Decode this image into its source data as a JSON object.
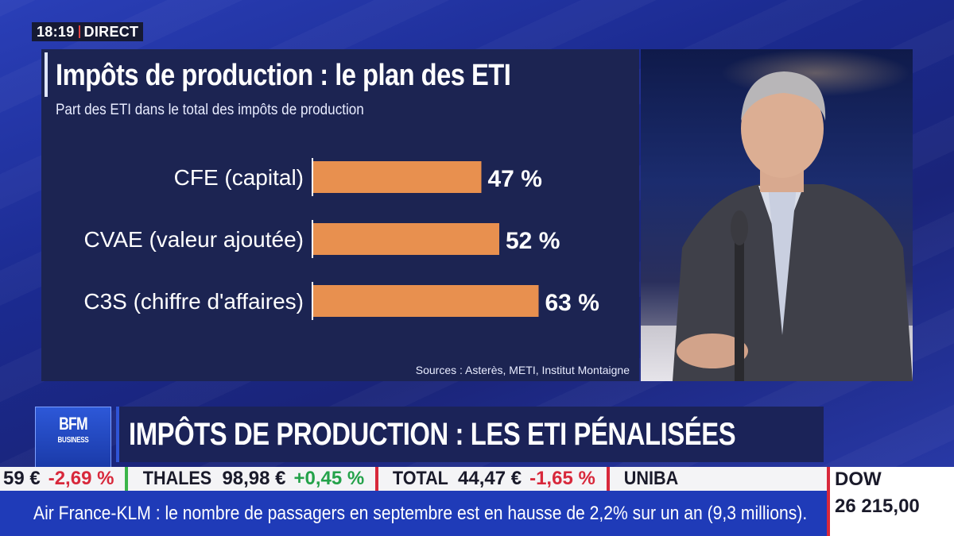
{
  "clock": {
    "time": "18:19",
    "status": "DIRECT"
  },
  "chart": {
    "title": "Impôts de production : le plan des ETI",
    "subtitle": "Part des ETI dans le total des impôts de production",
    "source": "Sources : Asterès, METI, Institut Montaigne"
  },
  "chart_data": {
    "type": "bar",
    "orientation": "horizontal",
    "title": "Impôts de production : le plan des ETI",
    "subtitle": "Part des ETI dans le total des impôts de production",
    "categories": [
      "CFE (capital)",
      "CVAE (valeur ajoutée)",
      "C3S (chiffre d'affaires)"
    ],
    "values": [
      47,
      52,
      63
    ],
    "value_labels": [
      "47 %",
      "52 %",
      "63 %"
    ],
    "unit": "%",
    "xlim": [
      0,
      100
    ],
    "grid": false,
    "bar_color": "#e8904f"
  },
  "brand": {
    "logo": "BFM",
    "logo_sub": "BUSINESS"
  },
  "headline": "IMPÔTS DE PRODUCTION : LES ETI PÉNALISÉES",
  "ticker": [
    {
      "name": "",
      "price": "59 €",
      "change": "-2,69 %",
      "direction": "down"
    },
    {
      "name": "THALES",
      "price": "98,98 €",
      "change": "+0,45 %",
      "direction": "up"
    },
    {
      "name": "TOTAL",
      "price": "44,47 €",
      "change": "-1,65 %",
      "direction": "down"
    },
    {
      "name": "UNIBA",
      "price": "",
      "change": "",
      "direction": "down"
    }
  ],
  "news": "Air France-KLM : le nombre de passagers en septembre est en hausse de 2,2% sur un an (9,3 millions).",
  "index": {
    "name": "DOW",
    "value": "26 215,00"
  },
  "colors": {
    "accent_blue": "#1f3bb8",
    "down": "#d8283b",
    "up": "#24a24a",
    "bar": "#e8904f"
  }
}
